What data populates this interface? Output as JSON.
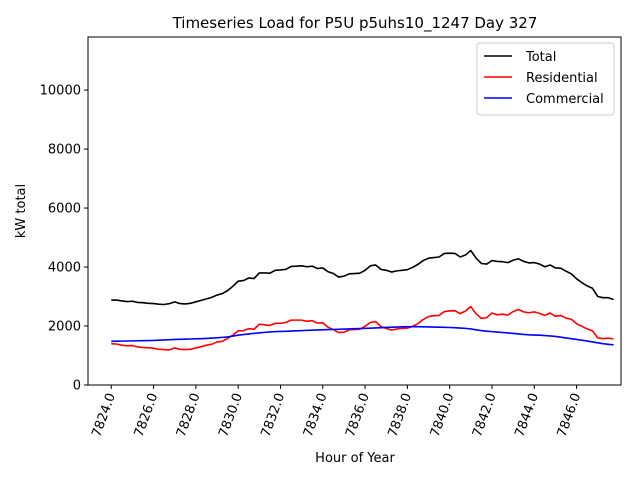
{
  "chart_data": {
    "type": "line",
    "title": "Timeseries Load for P5U p5uhs10_1247  Day 327",
    "xlabel": "Hour of Year",
    "ylabel": "kW total",
    "xlim": [
      7822.9,
      7848.1
    ],
    "ylim": [
      0,
      11800
    ],
    "xticks": [
      7824,
      7826,
      7828,
      7830,
      7832,
      7834,
      7836,
      7838,
      7840,
      7842,
      7844,
      7846
    ],
    "xtick_labels": [
      "7824.0",
      "7826.0",
      "7828.0",
      "7830.0",
      "7832.0",
      "7834.0",
      "7836.0",
      "7838.0",
      "7840.0",
      "7842.0",
      "7844.0",
      "7846.0"
    ],
    "yticks": [
      0,
      2000,
      4000,
      6000,
      8000,
      10000
    ],
    "ytick_labels": [
      "0",
      "2000",
      "4000",
      "6000",
      "8000",
      "10000"
    ],
    "legend_position": "top-right",
    "x_start": 7824.0,
    "x_step": 0.25,
    "series": [
      {
        "name": "Total",
        "color": "#000000",
        "values": [
          2880,
          2880,
          2850,
          2830,
          2840,
          2800,
          2790,
          2770,
          2760,
          2740,
          2730,
          2760,
          2820,
          2760,
          2750,
          2770,
          2820,
          2870,
          2920,
          2970,
          3050,
          3100,
          3200,
          3350,
          3520,
          3540,
          3630,
          3610,
          3800,
          3800,
          3790,
          3890,
          3900,
          3920,
          4020,
          4030,
          4040,
          4010,
          4030,
          3950,
          3970,
          3840,
          3780,
          3660,
          3690,
          3770,
          3780,
          3790,
          3890,
          4040,
          4070,
          3920,
          3890,
          3830,
          3870,
          3890,
          3910,
          3990,
          4090,
          4220,
          4300,
          4320,
          4340,
          4460,
          4470,
          4460,
          4340,
          4410,
          4560,
          4300,
          4120,
          4100,
          4220,
          4190,
          4180,
          4150,
          4230,
          4280,
          4190,
          4140,
          4150,
          4100,
          4010,
          4070,
          3970,
          3960,
          3860,
          3770,
          3600,
          3470,
          3360,
          3280,
          3000,
          2960,
          2960,
          2900
        ]
      },
      {
        "name": "Residential",
        "color": "#ff0000",
        "values": [
          1400,
          1390,
          1350,
          1330,
          1340,
          1290,
          1270,
          1260,
          1250,
          1210,
          1200,
          1190,
          1260,
          1210,
          1200,
          1210,
          1260,
          1300,
          1350,
          1380,
          1460,
          1480,
          1580,
          1690,
          1840,
          1840,
          1910,
          1890,
          2060,
          2040,
          2020,
          2090,
          2090,
          2120,
          2200,
          2200,
          2200,
          2160,
          2180,
          2100,
          2110,
          1960,
          1880,
          1780,
          1790,
          1870,
          1880,
          1890,
          1990,
          2120,
          2150,
          1980,
          1920,
          1860,
          1900,
          1920,
          1930,
          1990,
          2080,
          2220,
          2320,
          2350,
          2360,
          2490,
          2510,
          2520,
          2420,
          2510,
          2660,
          2410,
          2260,
          2280,
          2440,
          2380,
          2400,
          2370,
          2490,
          2560,
          2480,
          2450,
          2480,
          2430,
          2360,
          2440,
          2330,
          2360,
          2270,
          2230,
          2080,
          1990,
          1900,
          1840,
          1600,
          1570,
          1590,
          1560
        ]
      },
      {
        "name": "Commercial",
        "color": "#0000ff",
        "values": [
          1480,
          1484,
          1488,
          1492,
          1496,
          1500,
          1504,
          1508,
          1512,
          1520,
          1528,
          1536,
          1544,
          1550,
          1555,
          1560,
          1566,
          1572,
          1580,
          1590,
          1600,
          1615,
          1630,
          1660,
          1690,
          1710,
          1730,
          1750,
          1770,
          1785,
          1800,
          1810,
          1815,
          1820,
          1828,
          1836,
          1844,
          1852,
          1860,
          1866,
          1872,
          1878,
          1884,
          1890,
          1896,
          1902,
          1908,
          1914,
          1920,
          1928,
          1936,
          1944,
          1952,
          1960,
          1966,
          1972,
          1976,
          1978,
          1976,
          1972,
          1968,
          1964,
          1960,
          1955,
          1950,
          1942,
          1932,
          1920,
          1900,
          1870,
          1845,
          1825,
          1810,
          1795,
          1780,
          1765,
          1748,
          1730,
          1715,
          1702,
          1694,
          1688,
          1676,
          1664,
          1648,
          1620,
          1595,
          1570,
          1545,
          1520,
          1490,
          1460,
          1430,
          1400,
          1380,
          1360
        ]
      }
    ]
  }
}
